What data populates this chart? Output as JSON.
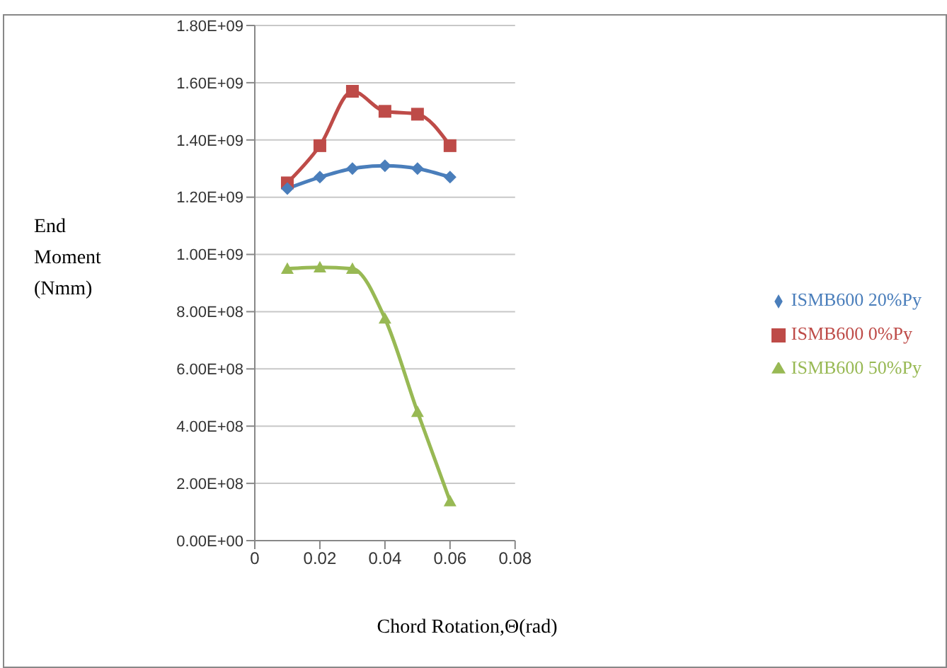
{
  "chart_data": {
    "type": "line",
    "xlabel": "Chord Rotation,Θ(rad)",
    "ylabel": "End Moment (Nmm)",
    "x": [
      0.01,
      0.02,
      0.03,
      0.04,
      0.05,
      0.06
    ],
    "series": [
      {
        "name": "ISMB600 20%Py",
        "color": "#4a7ebb",
        "marker": "diamond",
        "values": [
          1230000000.0,
          1270000000.0,
          1300000000.0,
          1310000000.0,
          1300000000.0,
          1270000000.0
        ]
      },
      {
        "name": "ISMB600 0%Py",
        "color": "#be4b48",
        "marker": "square",
        "values": [
          1250000000.0,
          1380000000.0,
          1570000000.0,
          1500000000.0,
          1490000000.0,
          1380000000.0
        ]
      },
      {
        "name": "ISMB600 50%Py",
        "color": "#98b954",
        "marker": "triangle",
        "values": [
          950000000.0,
          955000000.0,
          950000000.0,
          776000000.0,
          450000000.0,
          138000000.0
        ]
      }
    ],
    "xlim": [
      0,
      0.08
    ],
    "xticks": [
      0,
      0.02,
      0.04,
      0.06,
      0.08
    ],
    "ylim": [
      0,
      1800000000.0
    ],
    "yticks": [
      {
        "value": 0,
        "label": "0.00E+00"
      },
      {
        "value": 200000000.0,
        "label": "2.00E+08"
      },
      {
        "value": 400000000.0,
        "label": "4.00E+08"
      },
      {
        "value": 600000000.0,
        "label": "6.00E+08"
      },
      {
        "value": 800000000.0,
        "label": "8.00E+08"
      },
      {
        "value": 1000000000.0,
        "label": "1.00E+09"
      },
      {
        "value": 1200000000.0,
        "label": "1.20E+09"
      },
      {
        "value": 1400000000.0,
        "label": "1.40E+09"
      },
      {
        "value": 1600000000.0,
        "label": "1.60E+09"
      },
      {
        "value": 1800000000.0,
        "label": "1.80E+09"
      }
    ],
    "grid": "y",
    "legend": "right"
  }
}
